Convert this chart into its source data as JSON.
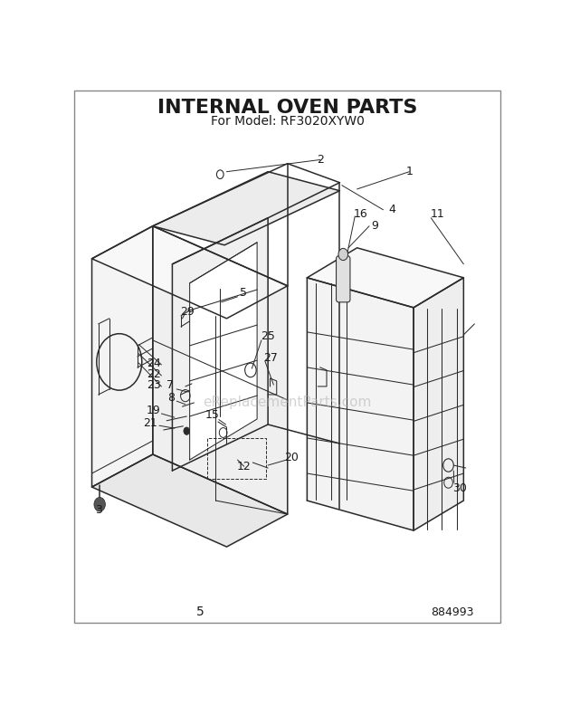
{
  "title": "INTERNAL OVEN PARTS",
  "subtitle": "For Model: RF3020XYW0",
  "page_number": "5",
  "doc_number": "884993",
  "background_color": "#ffffff",
  "line_color": "#2a2a2a",
  "text_color": "#1a1a1a",
  "watermark": "eReplacementParts.com",
  "title_fontsize": 16,
  "subtitle_fontsize": 10,
  "label_fontsize": 9,
  "watermark_fontsize": 11,
  "figsize": [
    6.2,
    7.8
  ],
  "dpi": 100
}
